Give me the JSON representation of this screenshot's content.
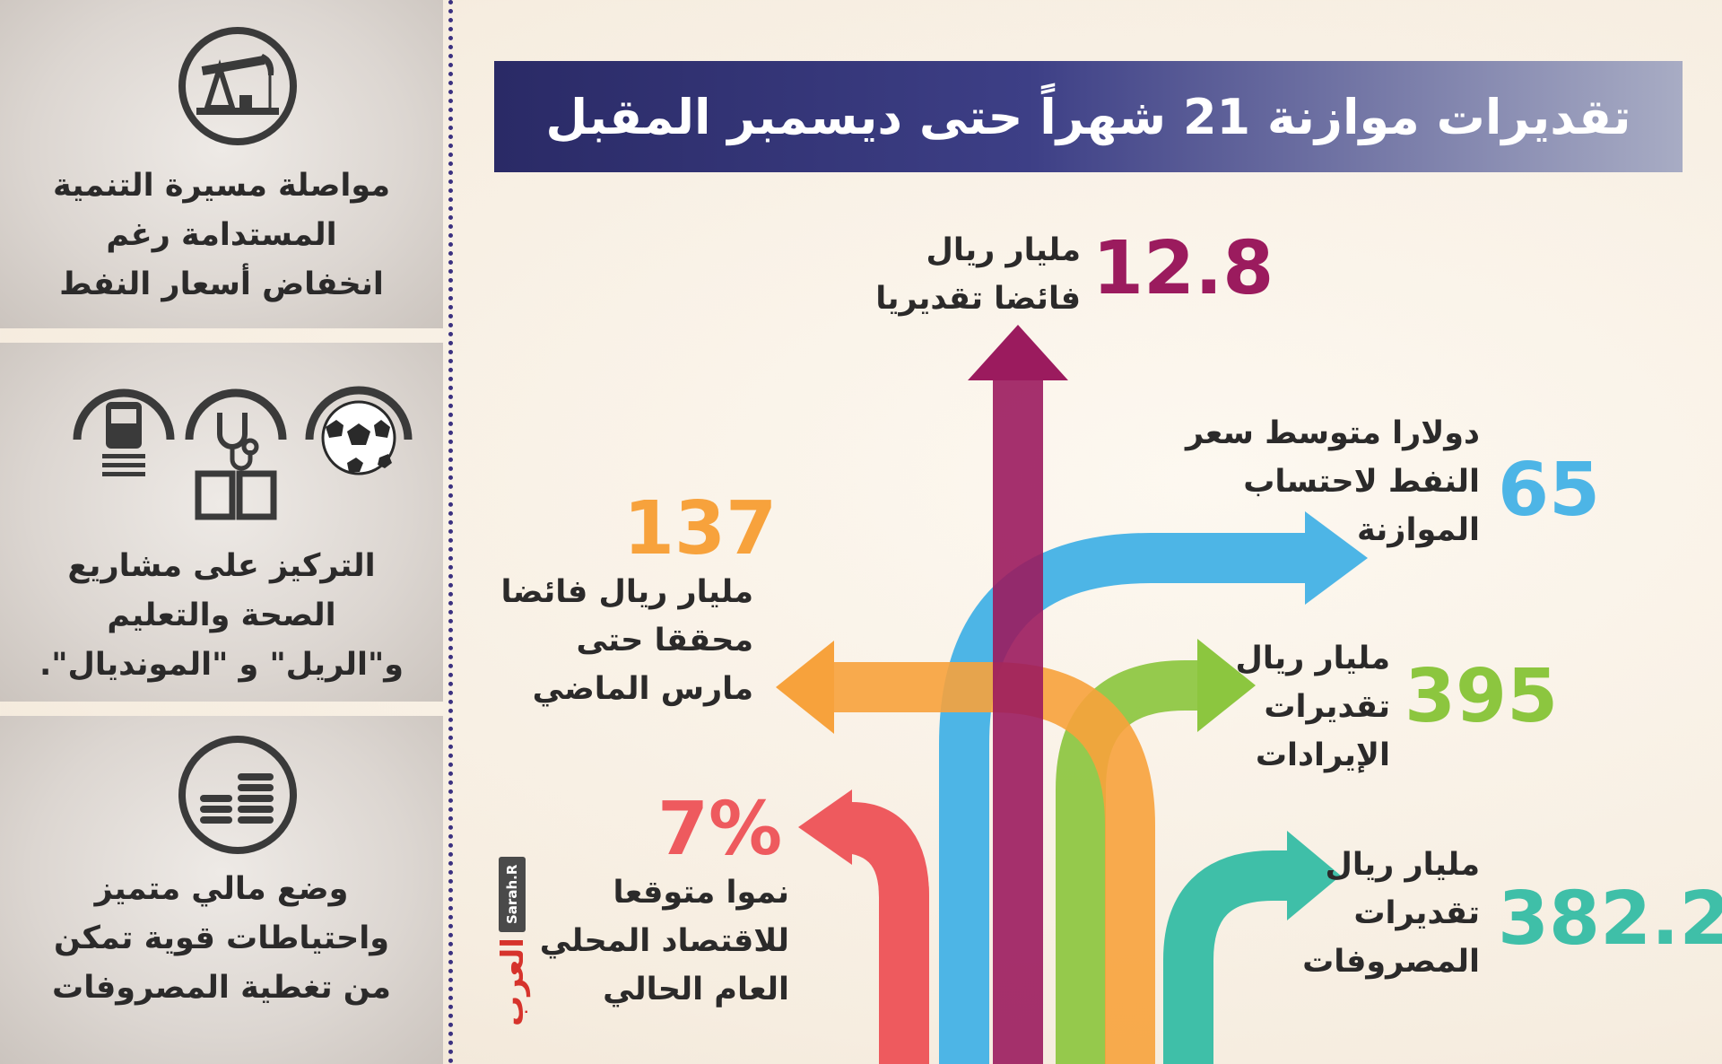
{
  "title": "تقديرات موازنة 21 شهراً حتى ديسمبر المقبل",
  "left_panels": [
    {
      "icon": "oil-pump-icon",
      "lines": [
        "مواصلة مسيرة التنمية",
        "المستدامة رغم",
        "انخفاض أسعار النفط"
      ]
    },
    {
      "icons": [
        "train-icon",
        "stethoscope-book-icon",
        "soccer-ball-icon"
      ],
      "lines": [
        "التركيز على مشاريع",
        "الصحة والتعليم",
        "و\"الريل\" و \"المونديال\"."
      ]
    },
    {
      "icon": "coins-stack-icon",
      "lines": [
        "وضع مالي متميز",
        "واحتياطات قوية تمكن",
        "من تغطية المصروفات"
      ]
    }
  ],
  "stats": {
    "surplus": {
      "value": "12.8",
      "lines": [
        "مليار ريال",
        "فائضا تقديريا"
      ],
      "color": "#9b1b5e"
    },
    "oil_price": {
      "value": "65",
      "lines": [
        "دولارا متوسط سعر",
        "النفط لاحتساب",
        "الموازنة"
      ],
      "color": "#4db5e6"
    },
    "achieved_surplus": {
      "value": "137",
      "lines": [
        "مليار ريال فائضا",
        "محققا حتى",
        "مارس الماضي"
      ],
      "color": "#f7a23c"
    },
    "revenues": {
      "value": "395",
      "lines": [
        "مليار ريال",
        "تقديرات",
        "الإيرادات"
      ],
      "color": "#8cc63f"
    },
    "growth": {
      "value": "7%",
      "lines": [
        "نموا متوقعا",
        "للاقتصاد المحلي",
        "العام الحالي"
      ],
      "color": "#ee5a5e"
    },
    "expenses": {
      "value": "382.2",
      "lines": [
        "مليار ريال",
        "تقديرات",
        "المصروفات"
      ],
      "color": "#3fbfa8"
    }
  },
  "credit": {
    "author": "Sarah.R",
    "logo": "العرب"
  }
}
